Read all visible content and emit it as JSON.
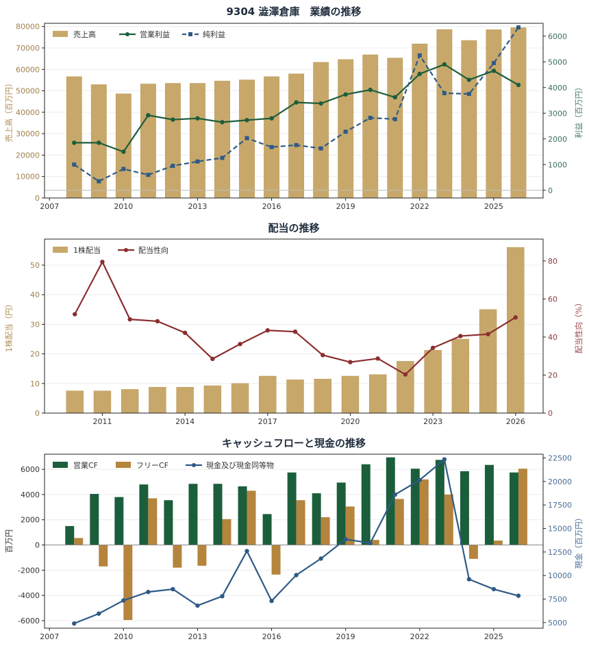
{
  "colors": {
    "gold": "#c8a86a",
    "green": "#1b5e3b",
    "blue": "#2f5a86",
    "darkred": "#8b2e2e",
    "bronze": "#b5843d",
    "cfgreen": "#1b5e3b",
    "cashblue": "#2f5a86"
  },
  "chart_data": [
    {
      "type": "bar",
      "title": "9304 澁澤倉庫　業績の推移",
      "ylabel": "売上高（百万円）",
      "y2label": "利益（百万円）",
      "x": [
        2008,
        2009,
        2010,
        2011,
        2012,
        2013,
        2014,
        2015,
        2016,
        2017,
        2018,
        2019,
        2020,
        2021,
        2022,
        2023,
        2024,
        2025,
        2026
      ],
      "xticks": [
        "2007",
        "2010",
        "2013",
        "2016",
        "2019",
        "2022",
        "2025"
      ],
      "yticks": [
        "0",
        "10000",
        "20000",
        "30000",
        "40000",
        "50000",
        "60000",
        "70000",
        "80000"
      ],
      "y2ticks": [
        "0",
        "1000",
        "2000",
        "3000",
        "4000",
        "5000",
        "6000"
      ],
      "xlim": [
        2006.8,
        2027.0
      ],
      "ylim": [
        0,
        81500
      ],
      "y2lim": [
        -300,
        6500
      ],
      "legend_position": "top-left",
      "series": [
        {
          "name": "売上高",
          "kind": "bar",
          "axis": "left",
          "values": [
            56600,
            52900,
            48600,
            53200,
            53500,
            53500,
            54600,
            55100,
            56600,
            57900,
            63300,
            64600,
            66800,
            65300,
            71900,
            78600,
            73500,
            78500,
            79500
          ]
        },
        {
          "name": "営業利益",
          "kind": "line",
          "axis": "right",
          "values": [
            1850,
            1850,
            1500,
            2920,
            2750,
            2800,
            2650,
            2730,
            2800,
            3420,
            3380,
            3730,
            3910,
            3620,
            4530,
            4900,
            4300,
            4650,
            4100
          ]
        },
        {
          "name": "純利益",
          "kind": "dashed",
          "axis": "right",
          "values": [
            1000,
            350,
            830,
            600,
            950,
            1120,
            1260,
            2030,
            1680,
            1760,
            1630,
            2280,
            2820,
            2770,
            5250,
            3780,
            3750,
            4950,
            6340
          ]
        }
      ]
    },
    {
      "type": "bar",
      "title": "配当の推移",
      "ylabel": "1株配当（円）",
      "y2label": "配当性向（%）",
      "x": [
        2010,
        2011,
        2012,
        2013,
        2014,
        2015,
        2016,
        2017,
        2018,
        2019,
        2020,
        2021,
        2022,
        2023,
        2024,
        2025,
        2026
      ],
      "xticks": [
        "2011",
        "2014",
        "2017",
        "2020",
        "2023",
        "2026"
      ],
      "yticks": [
        "0",
        "10",
        "20",
        "30",
        "40",
        "50"
      ],
      "y2ticks": [
        "0",
        "20",
        "40",
        "60",
        "80"
      ],
      "xlim": [
        2008.9,
        2027.0
      ],
      "ylim": [
        0,
        58.8
      ],
      "y2lim": [
        0,
        91.5
      ],
      "legend_position": "top-left",
      "series": [
        {
          "name": "1株配当",
          "kind": "bar",
          "axis": "left",
          "values": [
            7.5,
            7.5,
            8,
            8.75,
            8.75,
            9.25,
            10,
            12.5,
            11.25,
            11.5,
            12.5,
            13,
            17.5,
            21.25,
            25,
            35,
            56
          ]
        },
        {
          "name": "配当性向",
          "kind": "line",
          "axis": "right",
          "values": [
            52,
            79.5,
            49.3,
            48.3,
            42.2,
            28.5,
            36.3,
            43.5,
            42.8,
            30.5,
            26.8,
            28.7,
            20.3,
            34.3,
            40.5,
            41.5,
            50.3
          ]
        }
      ]
    },
    {
      "type": "bar",
      "title": "キャッシュフローと現金の推移",
      "ylabel": "百万円",
      "y2label": "現金（百万円）",
      "x": [
        2008,
        2009,
        2010,
        2011,
        2012,
        2013,
        2014,
        2015,
        2016,
        2017,
        2018,
        2019,
        2020,
        2021,
        2022,
        2023,
        2024,
        2025,
        2026
      ],
      "xticks": [
        "2007",
        "2010",
        "2013",
        "2016",
        "2019",
        "2022",
        "2025"
      ],
      "yticks": [
        "-6000",
        "-4000",
        "-2000",
        "0",
        "2000",
        "4000",
        "6000"
      ],
      "y2ticks": [
        "5000",
        "7500",
        "10000",
        "12500",
        "15000",
        "17500",
        "20000",
        "22500"
      ],
      "xlim": [
        2006.8,
        2027.0
      ],
      "ylim": [
        -6600,
        7200
      ],
      "y2lim": [
        4400,
        22900
      ],
      "legend_position": "top-left",
      "series": [
        {
          "name": "営業CF",
          "kind": "bar",
          "axis": "left",
          "values": [
            1500,
            4050,
            3800,
            4800,
            3550,
            4850,
            4850,
            4650,
            2450,
            5750,
            4100,
            4950,
            6400,
            6950,
            6050,
            6750,
            5850,
            6350,
            5750
          ]
        },
        {
          "name": "フリーCF",
          "kind": "bar",
          "axis": "left",
          "values": [
            550,
            -1700,
            -5950,
            3700,
            -1800,
            -1650,
            2050,
            4300,
            -2350,
            3550,
            2200,
            3050,
            400,
            3650,
            5200,
            4000,
            -1100,
            350,
            6050
          ]
        },
        {
          "name": "現金及び現金同等物",
          "kind": "line",
          "axis": "right",
          "values": [
            4900,
            5950,
            7350,
            8250,
            8550,
            6800,
            7800,
            12600,
            7300,
            10050,
            11800,
            13850,
            13450,
            18600,
            20150,
            22350,
            9600,
            8550,
            7850
          ]
        }
      ]
    }
  ]
}
